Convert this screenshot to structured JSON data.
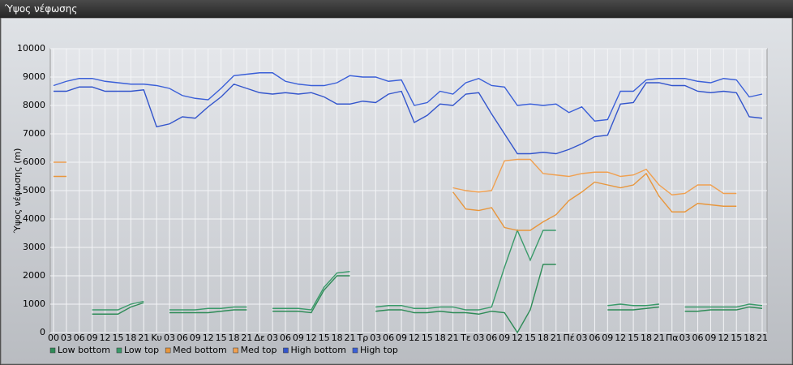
{
  "window": {
    "title": "Ύψος νέφωσης"
  },
  "chart_data": {
    "type": "line",
    "ylabel": "Ύψος νέφωσης (m)",
    "categories": [
      "00",
      "03",
      "06",
      "09",
      "12",
      "15",
      "18",
      "21",
      "Κυ",
      "03",
      "06",
      "09",
      "12",
      "15",
      "18",
      "21",
      "Δε",
      "03",
      "06",
      "09",
      "12",
      "15",
      "18",
      "21",
      "Τρ",
      "03",
      "06",
      "09",
      "12",
      "15",
      "18",
      "21",
      "Τε",
      "03",
      "06",
      "09",
      "12",
      "15",
      "18",
      "21",
      "Πέ",
      "03",
      "06",
      "09",
      "12",
      "15",
      "18",
      "21",
      "Πα",
      "03",
      "06",
      "09",
      "12",
      "15",
      "18",
      "21"
    ],
    "ylim": [
      0,
      10000
    ],
    "yticks": [
      0,
      1000,
      2000,
      3000,
      4000,
      5000,
      6000,
      7000,
      8000,
      9000,
      10000
    ],
    "grid": true,
    "series": [
      {
        "name": "Low bottom",
        "color": "#2e8b57",
        "values": [
          null,
          null,
          null,
          650,
          650,
          650,
          900,
          1050,
          null,
          700,
          700,
          700,
          700,
          750,
          800,
          800,
          null,
          750,
          750,
          750,
          700,
          1500,
          2000,
          2000,
          null,
          750,
          800,
          800,
          700,
          700,
          750,
          700,
          700,
          650,
          750,
          700,
          0,
          800,
          2400,
          2400,
          null,
          null,
          null,
          800,
          800,
          800,
          850,
          900,
          null,
          750,
          750,
          800,
          800,
          800,
          900,
          850
        ]
      },
      {
        "name": "Low top",
        "color": "#3a9a6a",
        "values": [
          null,
          null,
          null,
          800,
          800,
          800,
          1000,
          1100,
          null,
          800,
          800,
          800,
          850,
          850,
          900,
          900,
          null,
          850,
          850,
          850,
          800,
          1600,
          2100,
          2150,
          null,
          900,
          950,
          950,
          850,
          850,
          900,
          900,
          800,
          800,
          900,
          2300,
          3600,
          2550,
          3600,
          3600,
          null,
          null,
          null,
          950,
          1000,
          950,
          950,
          1000,
          null,
          900,
          900,
          900,
          900,
          900,
          1000,
          950
        ]
      },
      {
        "name": "Med bottom",
        "color": "#e8963c",
        "values": [
          5500,
          5500,
          null,
          null,
          null,
          null,
          null,
          null,
          null,
          null,
          null,
          null,
          null,
          null,
          null,
          null,
          null,
          null,
          null,
          null,
          null,
          null,
          null,
          null,
          null,
          null,
          null,
          null,
          null,
          null,
          null,
          4950,
          4350,
          4300,
          4400,
          3700,
          3600,
          3600,
          3900,
          4150,
          4650,
          4950,
          5300,
          5200,
          5100,
          5200,
          5600,
          4800,
          4250,
          4250,
          4550,
          4500,
          4450,
          4450,
          null,
          null
        ]
      },
      {
        "name": "Med top",
        "color": "#f0a050",
        "values": [
          6000,
          6000,
          null,
          null,
          null,
          null,
          null,
          null,
          null,
          null,
          null,
          null,
          null,
          null,
          null,
          null,
          null,
          null,
          null,
          null,
          null,
          null,
          null,
          null,
          null,
          null,
          null,
          null,
          null,
          null,
          null,
          5100,
          5000,
          4950,
          5000,
          6050,
          6100,
          6100,
          5600,
          5550,
          5500,
          5600,
          5650,
          5650,
          5500,
          5550,
          5750,
          5200,
          4850,
          4900,
          5200,
          5200,
          4900,
          4900,
          null,
          null
        ]
      },
      {
        "name": "High bottom",
        "color": "#3355cc",
        "values": [
          8500,
          8500,
          8650,
          8650,
          8500,
          8500,
          8500,
          8550,
          7250,
          7350,
          7600,
          7550,
          7950,
          8300,
          8750,
          8600,
          8450,
          8400,
          8450,
          8400,
          8450,
          8300,
          8050,
          8050,
          8150,
          8100,
          8400,
          8500,
          7400,
          7650,
          8050,
          8000,
          8400,
          8450,
          7700,
          7000,
          6300,
          6300,
          6350,
          6300,
          6450,
          6650,
          6900,
          6950,
          8050,
          8100,
          8800,
          8800,
          8700,
          8700,
          8500,
          8450,
          8500,
          8450,
          7600,
          7550
        ]
      },
      {
        "name": "High top",
        "color": "#3a5fd8",
        "values": [
          8700,
          8850,
          8950,
          8950,
          8850,
          8800,
          8750,
          8750,
          8700,
          8600,
          8350,
          8250,
          8200,
          8600,
          9050,
          9100,
          9150,
          9150,
          8850,
          8750,
          8700,
          8700,
          8800,
          9050,
          9000,
          9000,
          8850,
          8900,
          8000,
          8100,
          8500,
          8400,
          8800,
          8950,
          8700,
          8650,
          8000,
          8050,
          8000,
          8050,
          7750,
          7950,
          7450,
          7500,
          8500,
          8500,
          8900,
          8950,
          8950,
          8950,
          8850,
          8800,
          8950,
          8900,
          8300,
          8400
        ]
      }
    ]
  }
}
